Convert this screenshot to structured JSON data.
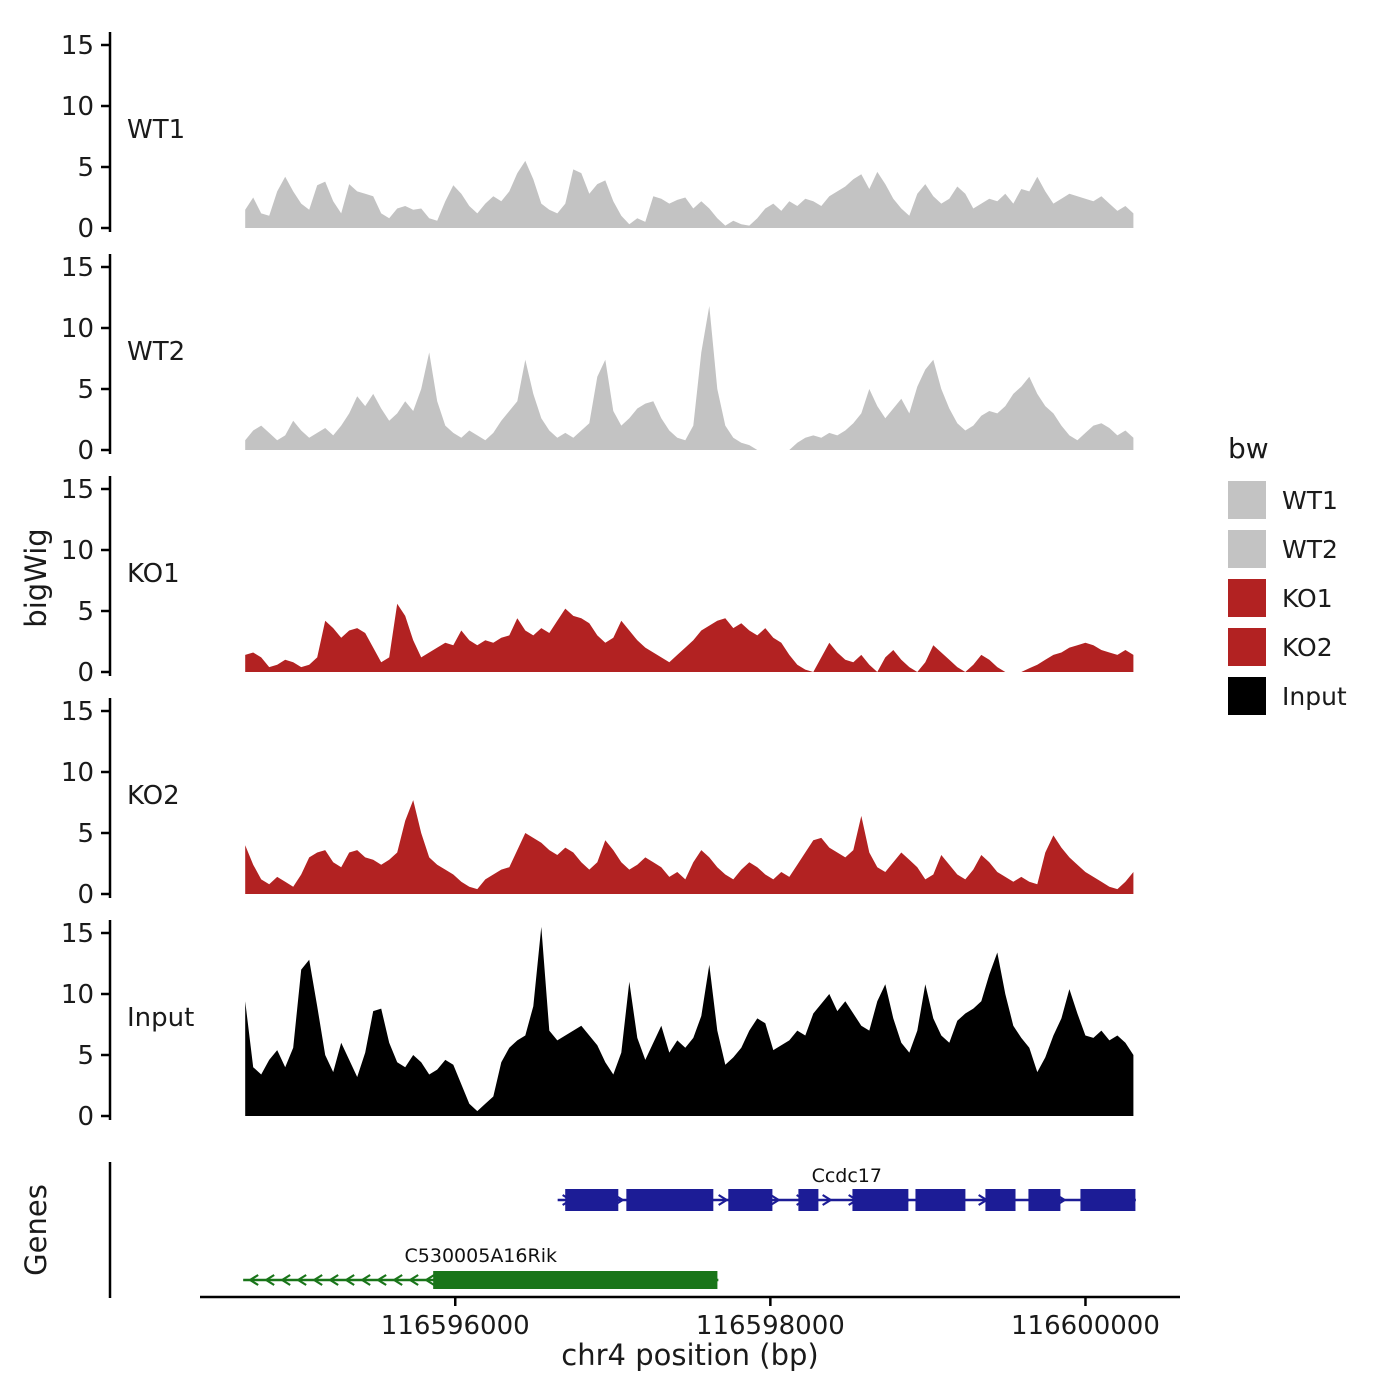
{
  "figure": {
    "y_axis_title": "bigWig",
    "genes_axis_title": "Genes",
    "x_axis_title": "chr4 position (bp)"
  },
  "legend": {
    "title": "bw",
    "items": [
      {
        "label": "WT1",
        "color": "#c3c3c3"
      },
      {
        "label": "WT2",
        "color": "#c3c3c3"
      },
      {
        "label": "KO1",
        "color": "#b22222"
      },
      {
        "label": "KO2",
        "color": "#b22222"
      },
      {
        "label": "Input",
        "color": "#000000"
      }
    ]
  },
  "chart_data": {
    "type": "area",
    "title": "",
    "xlabel": "chr4 position (bp)",
    "ylabel": "bigWig",
    "x_domain": [
      116594380,
      116600600
    ],
    "x_ticks": [
      116596000,
      116598000,
      116600000
    ],
    "y_ticks": [
      0,
      5,
      10,
      15
    ],
    "ylim": [
      0,
      16
    ],
    "grid": false,
    "legend_position": "right",
    "signal_start_bp": 116594667,
    "signal_end_bp": 116600304,
    "tracks": [
      {
        "name": "WT1",
        "color": "#c3c3c3",
        "values": [
          1.5,
          2.5,
          1.2,
          1.0,
          3.0,
          4.2,
          3.0,
          2.0,
          1.5,
          3.5,
          3.8,
          2.2,
          1.2,
          3.6,
          3.0,
          2.8,
          2.6,
          1.2,
          0.8,
          1.6,
          1.8,
          1.5,
          1.6,
          0.8,
          0.6,
          2.2,
          3.5,
          2.8,
          1.8,
          1.2,
          2.0,
          2.6,
          2.2,
          3.0,
          4.5,
          5.5,
          4.0,
          2.0,
          1.5,
          1.2,
          2.0,
          4.8,
          4.5,
          2.8,
          3.6,
          3.9,
          2.2,
          1.0,
          0.3,
          0.8,
          0.5,
          2.6,
          2.4,
          2.0,
          2.3,
          2.5,
          1.6,
          2.2,
          1.6,
          0.8,
          0.2,
          0.6,
          0.3,
          0.2,
          0.8,
          1.6,
          2.0,
          1.4,
          2.2,
          1.8,
          2.4,
          2.2,
          1.8,
          2.6,
          3.0,
          3.4,
          4.0,
          4.4,
          3.2,
          4.6,
          3.6,
          2.4,
          1.6,
          1.0,
          2.8,
          3.6,
          2.6,
          2.0,
          2.4,
          3.4,
          2.8,
          1.6,
          2.0,
          2.4,
          2.2,
          2.8,
          2.0,
          3.2,
          3.0,
          4.2,
          3.0,
          2.0,
          2.4,
          2.8,
          2.6,
          2.4,
          2.2,
          2.6,
          2.0,
          1.4,
          1.8,
          1.2
        ]
      },
      {
        "name": "WT2",
        "color": "#c3c3c3",
        "values": [
          0.8,
          1.6,
          2.0,
          1.4,
          0.8,
          1.2,
          2.4,
          1.6,
          1.0,
          1.4,
          1.8,
          1.2,
          2.0,
          3.0,
          4.4,
          3.6,
          4.6,
          3.4,
          2.4,
          3.0,
          4.0,
          3.2,
          5.0,
          8.0,
          4.0,
          2.0,
          1.4,
          1.0,
          1.6,
          1.2,
          0.8,
          1.4,
          2.4,
          3.2,
          4.0,
          7.4,
          4.6,
          2.6,
          1.6,
          1.0,
          1.4,
          1.0,
          1.6,
          2.2,
          6.0,
          7.4,
          3.2,
          2.0,
          2.6,
          3.4,
          3.8,
          4.0,
          2.6,
          1.6,
          1.0,
          0.8,
          2.0,
          8.0,
          11.8,
          5.0,
          2.0,
          1.0,
          0.6,
          0.4,
          0.0,
          0.0,
          0.0,
          0.0,
          0.0,
          0.6,
          1.0,
          1.2,
          1.0,
          1.4,
          1.2,
          1.6,
          2.2,
          3.0,
          5.0,
          3.6,
          2.6,
          3.4,
          4.2,
          3.0,
          5.2,
          6.6,
          7.4,
          5.0,
          3.4,
          2.2,
          1.6,
          2.0,
          2.8,
          3.2,
          3.0,
          3.6,
          4.6,
          5.2,
          6.0,
          4.6,
          3.6,
          3.0,
          2.0,
          1.2,
          0.8,
          1.4,
          2.0,
          2.2,
          1.8,
          1.2,
          1.6,
          1.0
        ]
      },
      {
        "name": "KO1",
        "color": "#b22222",
        "values": [
          1.4,
          1.6,
          1.2,
          0.4,
          0.6,
          1.0,
          0.8,
          0.4,
          0.6,
          1.2,
          4.2,
          3.6,
          2.8,
          3.4,
          3.6,
          3.2,
          2.0,
          0.8,
          1.2,
          5.6,
          4.6,
          2.6,
          1.2,
          1.6,
          2.0,
          2.4,
          2.2,
          3.4,
          2.6,
          2.2,
          2.6,
          2.4,
          2.8,
          3.0,
          4.4,
          3.4,
          3.0,
          3.6,
          3.2,
          4.2,
          5.2,
          4.6,
          4.4,
          4.0,
          3.0,
          2.4,
          2.8,
          4.2,
          3.4,
          2.6,
          2.0,
          1.6,
          1.2,
          0.8,
          1.4,
          2.0,
          2.6,
          3.4,
          3.8,
          4.2,
          4.4,
          3.6,
          4.0,
          3.4,
          3.0,
          3.6,
          2.8,
          2.4,
          1.4,
          0.6,
          0.2,
          0.0,
          1.2,
          2.4,
          1.6,
          1.0,
          0.8,
          1.4,
          0.6,
          0.0,
          1.2,
          1.8,
          1.0,
          0.4,
          0.0,
          0.8,
          2.2,
          1.6,
          1.0,
          0.4,
          0.0,
          0.6,
          1.4,
          1.0,
          0.4,
          0.0,
          0.0,
          0.0,
          0.3,
          0.6,
          1.0,
          1.4,
          1.6,
          2.0,
          2.2,
          2.4,
          2.2,
          1.8,
          1.6,
          1.4,
          1.8,
          1.4
        ]
      },
      {
        "name": "KO2",
        "color": "#b22222",
        "values": [
          4.0,
          2.4,
          1.2,
          0.8,
          1.4,
          1.0,
          0.6,
          1.6,
          3.0,
          3.4,
          3.6,
          2.6,
          2.2,
          3.4,
          3.6,
          3.0,
          2.8,
          2.4,
          2.8,
          3.4,
          6.0,
          7.7,
          5.0,
          3.0,
          2.4,
          2.0,
          1.6,
          1.0,
          0.6,
          0.4,
          1.2,
          1.6,
          2.0,
          2.2,
          3.6,
          5.0,
          4.6,
          4.2,
          3.6,
          3.2,
          3.8,
          3.4,
          2.6,
          2.0,
          2.6,
          4.4,
          3.6,
          2.6,
          2.0,
          2.4,
          3.0,
          2.6,
          2.2,
          1.4,
          1.8,
          1.2,
          2.6,
          3.6,
          3.0,
          2.2,
          1.6,
          1.2,
          2.0,
          2.6,
          2.2,
          1.6,
          1.2,
          1.8,
          1.4,
          2.4,
          3.4,
          4.4,
          4.6,
          3.8,
          3.4,
          3.0,
          3.6,
          6.4,
          3.4,
          2.2,
          1.8,
          2.6,
          3.4,
          2.8,
          2.2,
          1.2,
          1.6,
          3.2,
          2.4,
          1.6,
          1.2,
          2.0,
          3.2,
          2.6,
          1.8,
          1.4,
          1.0,
          1.4,
          1.0,
          0.8,
          3.4,
          4.8,
          3.8,
          3.0,
          2.4,
          1.8,
          1.4,
          1.0,
          0.6,
          0.4,
          1.0,
          1.8
        ]
      },
      {
        "name": "Input",
        "color": "#000000",
        "values": [
          9.4,
          4.0,
          3.4,
          4.6,
          5.4,
          4.0,
          5.6,
          12.0,
          12.8,
          9.0,
          5.0,
          3.6,
          6.0,
          4.6,
          3.2,
          5.2,
          8.6,
          8.8,
          6.0,
          4.4,
          4.0,
          5.0,
          4.4,
          3.4,
          3.8,
          4.6,
          4.2,
          2.6,
          1.0,
          0.4,
          1.0,
          1.6,
          4.4,
          5.6,
          6.2,
          6.6,
          9.0,
          15.5,
          7.0,
          6.2,
          6.6,
          7.0,
          7.4,
          6.6,
          5.8,
          4.4,
          3.4,
          5.2,
          11.0,
          6.4,
          4.6,
          6.0,
          7.4,
          5.2,
          6.2,
          5.6,
          6.4,
          8.2,
          12.4,
          7.0,
          4.2,
          4.8,
          5.6,
          7.0,
          8.0,
          7.6,
          5.4,
          5.8,
          6.2,
          7.0,
          6.6,
          8.4,
          9.2,
          10.0,
          8.6,
          9.4,
          8.4,
          7.4,
          7.0,
          9.4,
          10.8,
          8.0,
          6.0,
          5.2,
          7.0,
          10.8,
          8.0,
          6.6,
          6.0,
          7.8,
          8.4,
          8.8,
          9.4,
          11.6,
          13.4,
          10.0,
          7.4,
          6.4,
          5.6,
          3.6,
          4.8,
          6.6,
          8.0,
          10.4,
          8.4,
          6.6,
          6.4,
          7.0,
          6.2,
          6.6,
          6.0,
          5.0
        ]
      }
    ],
    "genes": [
      {
        "name": "Ccdc17",
        "color": "#1c1c96",
        "strand": "+",
        "start": 116596650,
        "end": 116600320,
        "exons": [
          [
            116596698,
            116597035
          ],
          [
            116597086,
            116597638
          ],
          [
            116597733,
            116598013
          ],
          [
            116598178,
            116598305
          ],
          [
            116598521,
            116598876
          ],
          [
            116598921,
            116599238
          ],
          [
            116599365,
            116599556
          ],
          [
            116599638,
            116599841
          ],
          [
            116599968,
            116600317
          ]
        ]
      },
      {
        "name": "C530005A16Rik",
        "color": "#197519",
        "strand": "-",
        "start": 116594654,
        "end": 116597670,
        "exons": [
          [
            116595860,
            116597664
          ]
        ]
      }
    ]
  }
}
